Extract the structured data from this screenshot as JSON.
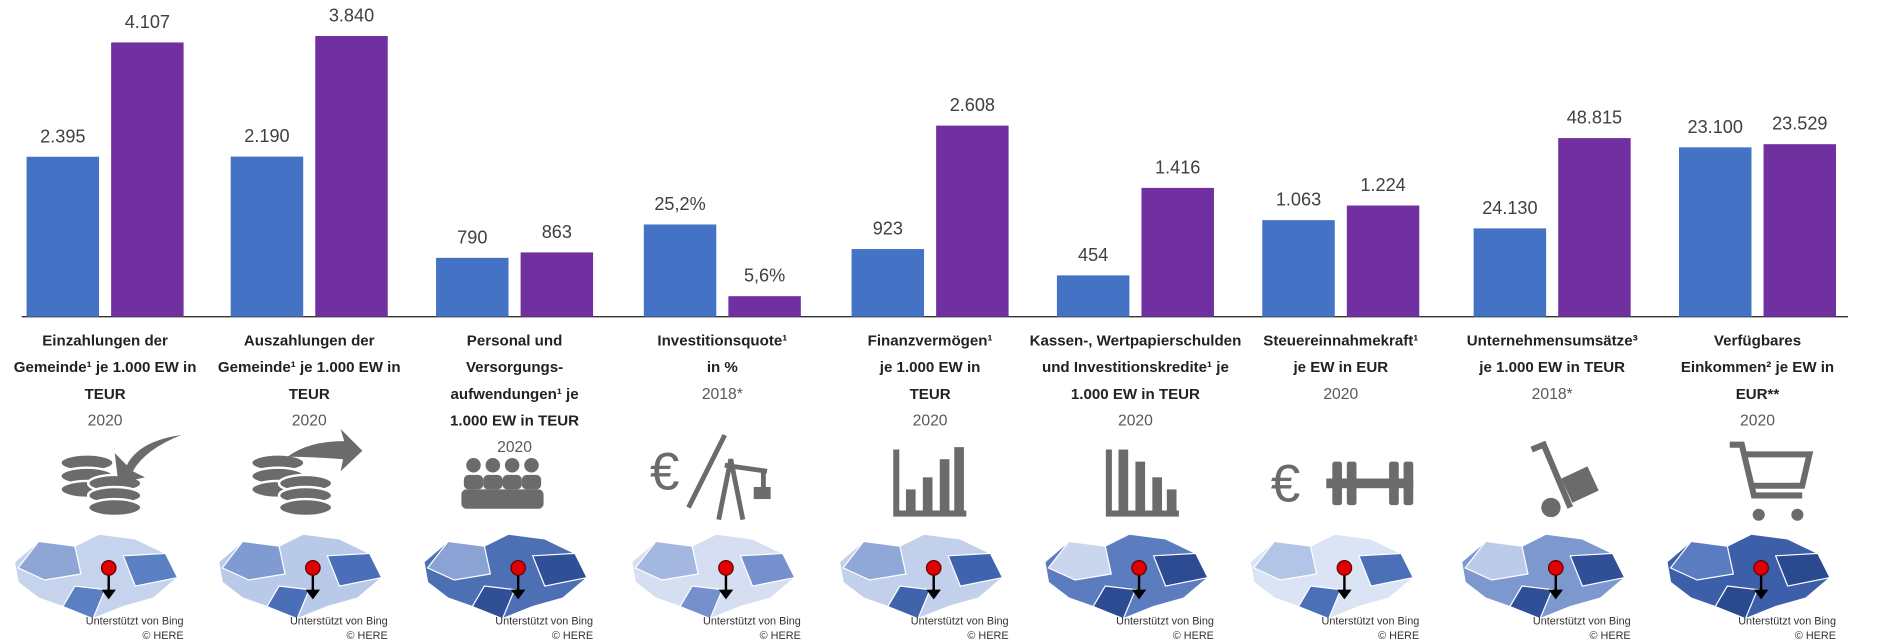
{
  "chart_data": [
    {
      "type": "bar",
      "label_lines": [
        "Einzahlungen der",
        "Gemeinde¹ je 1.000 EW in",
        "TEUR"
      ],
      "year": "2020",
      "values": [
        2395,
        4107
      ],
      "value_labels": [
        "2.395",
        "4.107"
      ],
      "colors": [
        "#4472c4",
        "#7030a0"
      ],
      "ylim": [
        0,
        4740
      ]
    },
    {
      "type": "bar",
      "label_lines": [
        "Auszahlungen der",
        "Gemeinde¹ je 1.000 EW in",
        "TEUR"
      ],
      "year": "2020",
      "values": [
        2190,
        3840
      ],
      "value_labels": [
        "2.190",
        "3.840"
      ],
      "colors": [
        "#4472c4",
        "#7030a0"
      ],
      "ylim": [
        0,
        4330
      ]
    },
    {
      "type": "bar",
      "label_lines": [
        "Personal und",
        "Versorgungs-",
        "aufwendungen¹ je",
        "1.000 EW in TEUR"
      ],
      "year": "2020",
      "values": [
        790,
        863
      ],
      "value_labels": [
        "790",
        "863"
      ],
      "colors": [
        "#4472c4",
        "#7030a0"
      ],
      "ylim": [
        0,
        4250
      ]
    },
    {
      "type": "bar",
      "label_lines": [
        "Investitionsquote¹",
        "in %"
      ],
      "year": "2018*",
      "values": [
        25.2,
        5.6
      ],
      "value_labels": [
        "25,2%",
        "5,6%"
      ],
      "colors": [
        "#4472c4",
        "#7030a0"
      ],
      "ylim": [
        0,
        86.5
      ]
    },
    {
      "type": "bar",
      "label_lines": [
        "Finanzvermögen¹",
        "je 1.000 EW in",
        "TEUR"
      ],
      "year": "2020",
      "values": [
        923,
        2608
      ],
      "value_labels": [
        "923",
        "2.608"
      ],
      "colors": [
        "#4472c4",
        "#7030a0"
      ],
      "ylim": [
        0,
        4320
      ]
    },
    {
      "type": "bar",
      "label_lines": [
        "Kassen-, Wertpapierschulden",
        "und Investitionskredite¹ je",
        "1.000 EW in TEUR"
      ],
      "year": "2020",
      "values": [
        454,
        1416
      ],
      "value_labels": [
        "454",
        "1.416"
      ],
      "colors": [
        "#4472c4",
        "#7030a0"
      ],
      "ylim": [
        0,
        3480
      ]
    },
    {
      "type": "bar",
      "label_lines": [
        "Steuereinnahmekraft¹",
        "je EW in EUR"
      ],
      "year": "2020",
      "values": [
        1063,
        1224
      ],
      "value_labels": [
        "1.063",
        "1.224"
      ],
      "colors": [
        "#4472c4",
        "#7030a0"
      ],
      "ylim": [
        0,
        3485
      ]
    },
    {
      "type": "bar",
      "label_lines": [
        "Unternehmensumsätze³",
        "je 1.000 EW in TEUR"
      ],
      "year": "2018*",
      "values": [
        24130,
        48815
      ],
      "value_labels": [
        "24.130",
        "48.815"
      ],
      "colors": [
        "#4472c4",
        "#7030a0"
      ],
      "ylim": [
        0,
        86500
      ]
    },
    {
      "type": "bar",
      "label_lines": [
        "Verfügbares",
        "Einkommen² je EW in",
        "EUR**"
      ],
      "year": "2020",
      "values": [
        23100,
        23529
      ],
      "value_labels": [
        "23.100",
        "23.529"
      ],
      "colors": [
        "#4472c4",
        "#7030a0"
      ],
      "ylim": [
        0,
        43170
      ]
    }
  ],
  "map_credits": [
    "Unterstützt von Bing",
    "© HERE"
  ]
}
